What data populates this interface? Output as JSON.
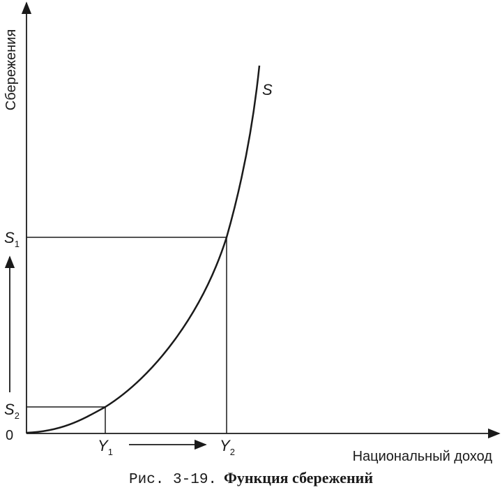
{
  "axes": {
    "y_label": "Сбережения",
    "x_label": "Национальный доход",
    "origin": "0"
  },
  "curve": {
    "label": "S"
  },
  "levels": {
    "s1": {
      "letter": "S",
      "sub": "1"
    },
    "s2": {
      "letter": "S",
      "sub": "2"
    },
    "y1": {
      "letter": "Y",
      "sub": "1"
    },
    "y2": {
      "letter": "Y",
      "sub": "2"
    }
  },
  "caption": {
    "number": "Рис. 3-19.",
    "title": "Функция сбережений"
  }
}
